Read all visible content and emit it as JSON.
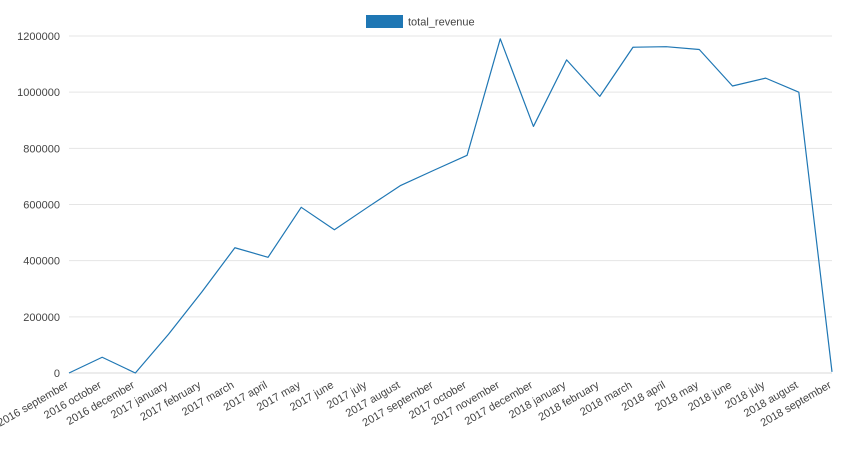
{
  "chart_data": {
    "type": "line",
    "title": "",
    "xlabel": "",
    "ylabel": "",
    "categories": [
      "2016 september",
      "2016 october",
      "2016 december",
      "2017 january",
      "2017 february",
      "2017 march",
      "2017 april",
      "2017 may",
      "2017 june",
      "2017 july",
      "2017 august",
      "2017 september",
      "2017 october",
      "2017 november",
      "2017 december",
      "2018 january",
      "2018 february",
      "2018 march",
      "2018 april",
      "2018 may",
      "2018 june",
      "2018 july",
      "2018 august",
      "2018 september"
    ],
    "series": [
      {
        "name": "total_revenue",
        "color": "#1f77b4",
        "values": [
          0,
          56000,
          0,
          138000,
          288000,
          446000,
          412000,
          590000,
          510000,
          590000,
          668000,
          722000,
          775000,
          1190000,
          878000,
          1115000,
          985000,
          1160000,
          1162000,
          1152000,
          1022000,
          1050000,
          1000000,
          4000
        ]
      }
    ],
    "y_ticks": [
      0,
      200000,
      400000,
      600000,
      800000,
      1000000,
      1200000
    ],
    "ylim": [
      0,
      1200000
    ],
    "grid": true,
    "legend_position": "top-center"
  }
}
